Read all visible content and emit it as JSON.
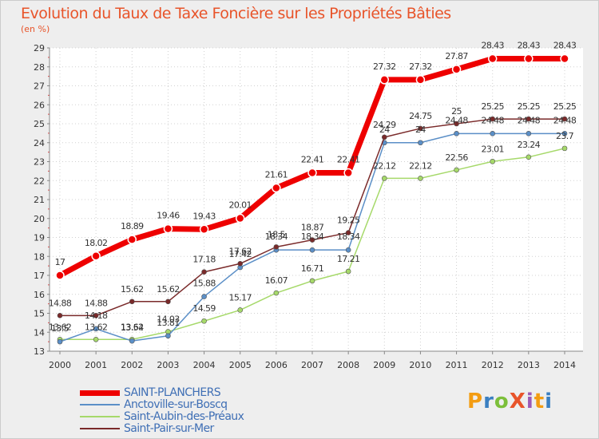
{
  "header": {
    "title": "Evolution du Taux de Taxe Foncière sur les Propriétés Bâties",
    "subtitle": "(en %)"
  },
  "logo": {
    "text": "ProXiti",
    "colors": [
      "#f39c12",
      "#3a7fc1",
      "#7cbf3a",
      "#e8542a",
      "#9b59b6",
      "#f39c12",
      "#3a7fc1"
    ]
  },
  "chart_data": {
    "type": "line",
    "title": "Evolution du Taux de Taxe Foncière sur les Propriétés Bâties",
    "ylabel": "(en %)",
    "xlabel": "",
    "x": [
      2000,
      2001,
      2002,
      2003,
      2004,
      2005,
      2006,
      2007,
      2008,
      2009,
      2010,
      2011,
      2012,
      2013,
      2014
    ],
    "ylim": [
      13,
      29
    ],
    "yticks": [
      13,
      14,
      15,
      16,
      17,
      18,
      19,
      20,
      21,
      22,
      23,
      24,
      25,
      26,
      27,
      28,
      29
    ],
    "grid": true,
    "legend_position": "bottom-left",
    "series": [
      {
        "name": "SAINT-PLANCHERS",
        "color": "#ee0000",
        "width": 7,
        "values": [
          17,
          18.02,
          18.89,
          19.46,
          19.43,
          20.01,
          21.61,
          22.41,
          22.41,
          27.32,
          27.32,
          27.87,
          28.43,
          28.43,
          28.43
        ],
        "labels": [
          "17",
          "18.02",
          "18.89",
          "19.46",
          "19.43",
          "20.01",
          "21.61",
          "22.41",
          "22.41",
          "27.32",
          "27.32",
          "27.87",
          "28.43",
          "28.43",
          "28.43"
        ]
      },
      {
        "name": "Anctoville-sur-Boscq",
        "color": "#5b8fc7",
        "width": 1.5,
        "values": [
          13.5,
          14.18,
          13.54,
          13.81,
          15.88,
          17.42,
          18.34,
          18.34,
          18.34,
          24,
          24,
          24.48,
          24.48,
          24.48,
          24.48
        ],
        "labels": [
          "13.5",
          "14.18",
          "13.54",
          "13.81",
          "15.88",
          "17.42",
          "18.34",
          "18.34",
          "18.34",
          "24",
          "24",
          "24.48",
          "24.48",
          "24.48",
          "24.48"
        ]
      },
      {
        "name": "Saint-Aubin-des-Préaux",
        "color": "#a6d96a",
        "width": 1.5,
        "values": [
          13.62,
          13.62,
          13.62,
          14.03,
          14.59,
          15.17,
          16.07,
          16.71,
          17.21,
          22.12,
          22.12,
          22.56,
          23.01,
          23.24,
          23.7
        ],
        "labels": [
          "13.62",
          "13.62",
          "13.62",
          "14.03",
          "14.59",
          "15.17",
          "16.07",
          "16.71",
          "17.21",
          "22.12",
          "22.12",
          "22.56",
          "23.01",
          "23.24",
          "23.7"
        ]
      },
      {
        "name": "Saint-Pair-sur-Mer",
        "color": "#7a2a2a",
        "width": 1.5,
        "values": [
          14.88,
          14.88,
          15.62,
          15.62,
          17.18,
          17.62,
          18.5,
          18.87,
          19.25,
          24.29,
          24.75,
          25,
          25.25,
          25.25,
          25.25
        ],
        "labels": [
          "14.88",
          "14.88",
          "15.62",
          "15.62",
          "17.18",
          "17.62",
          "18.5",
          "18.87",
          "19.25",
          "24.29",
          "24.75",
          "25",
          "25.25",
          "25.25",
          "25.25"
        ]
      }
    ]
  }
}
